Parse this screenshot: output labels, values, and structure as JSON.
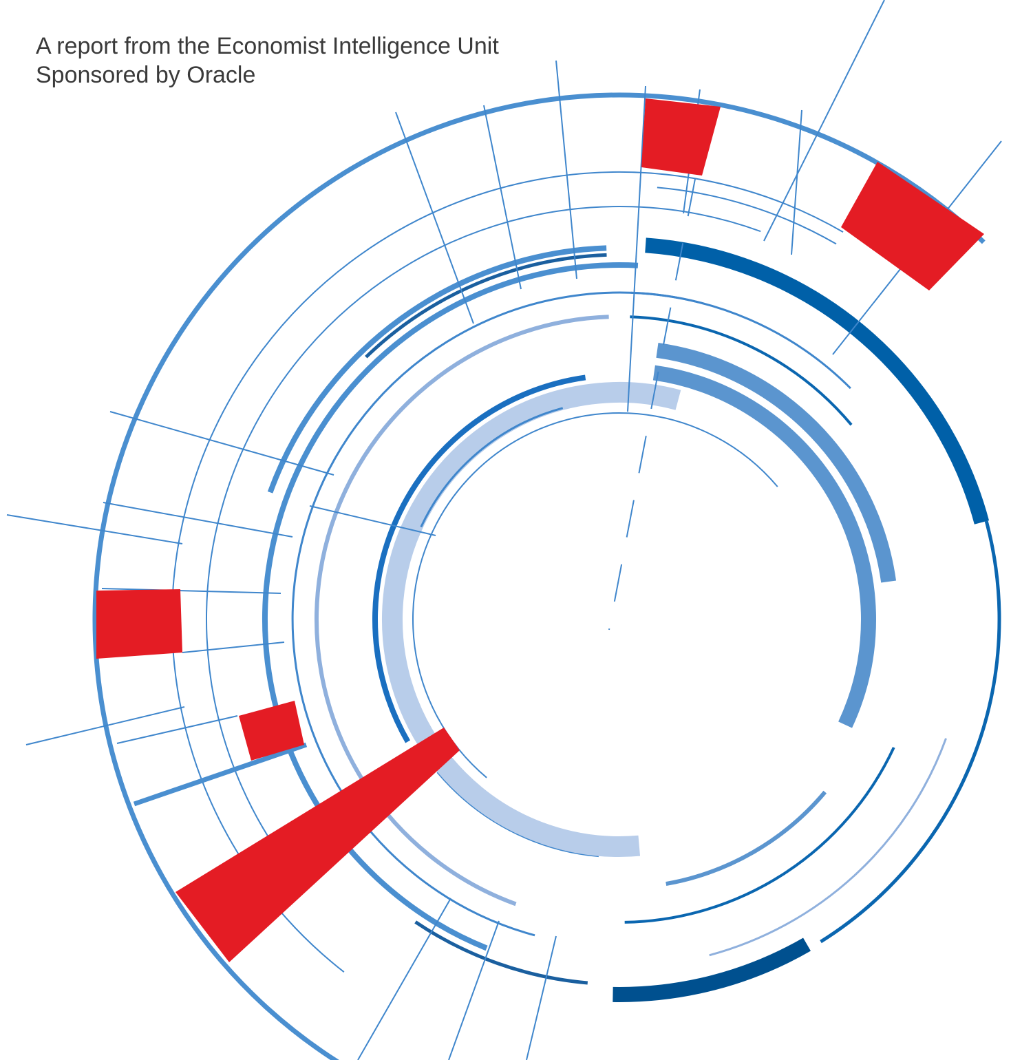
{
  "header": {
    "subtitle": "A report from the Economist Intelligence Unit",
    "sponsor": "Sponsored by Oracle"
  }
}
